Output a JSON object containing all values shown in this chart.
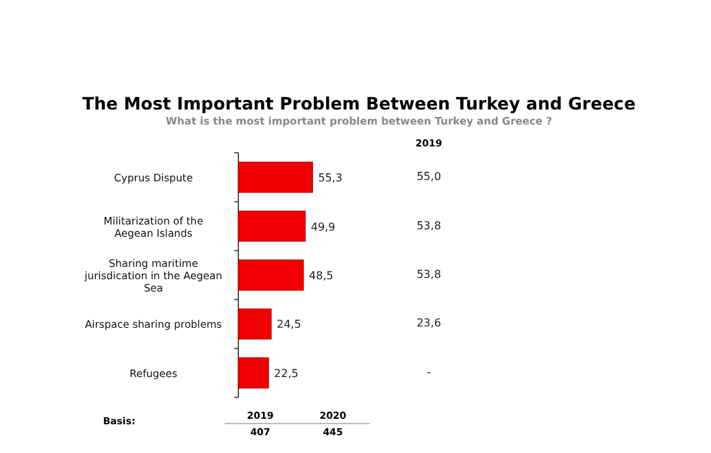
{
  "chart_data": {
    "type": "bar",
    "orientation": "horizontal",
    "title": "The Most Important Problem Between Turkey and Greece",
    "subtitle": "What is the most important problem between Turkey and Greece ?",
    "categories": [
      "Cyprus Dispute",
      "Militarization of the Aegean Islands",
      "Sharing maritime jurisdication in the Aegean Sea",
      "Airspace sharing problems",
      "Refugees"
    ],
    "values": [
      55.3,
      49.9,
      48.5,
      24.5,
      22.5
    ],
    "value_labels": [
      "55,3",
      "49,9",
      "48,5",
      "24,5",
      "22,5"
    ],
    "color": "#f00000",
    "annotations": [
      "2019",
      "55,0",
      "53,8",
      "53,8",
      "23,6",
      "-",
      "Basis:",
      "2019",
      "2020",
      "407",
      "445"
    ]
  }
}
